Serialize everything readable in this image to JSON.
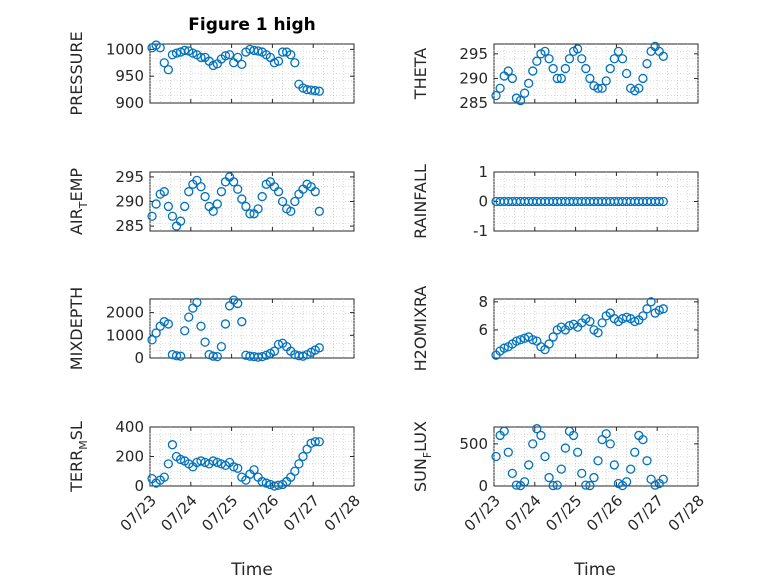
{
  "figure": {
    "title": "Figure 1 high",
    "xlabel": "Time"
  },
  "chart_data": [
    {
      "type": "scatter",
      "id": "pressure",
      "ylabel": "PRESSURE",
      "ylim": [
        900,
        1010
      ],
      "yticks": [
        900,
        950,
        1000
      ],
      "xlim": [
        0,
        5
      ],
      "xticks": [],
      "grid": true,
      "marker_color": "#0072BD",
      "x": [
        0.05,
        0.15,
        0.25,
        0.35,
        0.45,
        0.55,
        0.65,
        0.75,
        0.85,
        0.95,
        1.05,
        1.15,
        1.25,
        1.35,
        1.45,
        1.55,
        1.65,
        1.75,
        1.85,
        1.95,
        2.05,
        2.15,
        2.25,
        2.35,
        2.45,
        2.55,
        2.65,
        2.75,
        2.85,
        2.95,
        3.05,
        3.15,
        3.25,
        3.35,
        3.45,
        3.55,
        3.65,
        3.75,
        3.85,
        3.95,
        4.05,
        4.15
      ],
      "y": [
        1003,
        1008,
        1003,
        975,
        962,
        990,
        993,
        995,
        998,
        997,
        993,
        990,
        985,
        985,
        978,
        970,
        973,
        982,
        988,
        990,
        975,
        985,
        972,
        995,
        1000,
        998,
        997,
        995,
        990,
        985,
        975,
        978,
        995,
        995,
        990,
        975,
        935,
        928,
        925,
        924,
        923,
        922
      ]
    },
    {
      "type": "scatter",
      "id": "theta",
      "ylabel": "THETA",
      "ylim": [
        285,
        297
      ],
      "yticks": [
        285,
        290,
        295
      ],
      "xlim": [
        0,
        5
      ],
      "xticks": [],
      "grid": true,
      "marker_color": "#0072BD",
      "x": [
        0.05,
        0.15,
        0.25,
        0.35,
        0.45,
        0.55,
        0.65,
        0.75,
        0.85,
        0.95,
        1.05,
        1.15,
        1.25,
        1.35,
        1.45,
        1.55,
        1.65,
        1.75,
        1.85,
        1.95,
        2.05,
        2.15,
        2.25,
        2.35,
        2.45,
        2.55,
        2.65,
        2.75,
        2.85,
        2.95,
        3.05,
        3.15,
        3.25,
        3.35,
        3.45,
        3.55,
        3.65,
        3.75,
        3.85,
        3.95,
        4.05,
        4.15
      ],
      "y": [
        286.5,
        288,
        290.5,
        291.5,
        290,
        286,
        285.5,
        287,
        289,
        291.5,
        293.5,
        295,
        295.5,
        294,
        292,
        290,
        290,
        292,
        294,
        295.5,
        296,
        294,
        292,
        290,
        288.5,
        288,
        288,
        289.5,
        292,
        294,
        295.5,
        294,
        291,
        288,
        287.5,
        288,
        290,
        293,
        295.5,
        296.5,
        295.5,
        294.5
      ]
    },
    {
      "type": "scatter",
      "id": "air_temp",
      "ylabel": "AIR_TEMP",
      "ylim": [
        284,
        296
      ],
      "yticks": [
        285,
        290,
        295
      ],
      "xlim": [
        0,
        5
      ],
      "xticks": [],
      "grid": true,
      "marker_color": "#0072BD",
      "x": [
        0.05,
        0.15,
        0.25,
        0.35,
        0.45,
        0.55,
        0.65,
        0.75,
        0.85,
        0.95,
        1.05,
        1.15,
        1.25,
        1.35,
        1.45,
        1.55,
        1.65,
        1.75,
        1.85,
        1.95,
        2.05,
        2.15,
        2.25,
        2.35,
        2.45,
        2.55,
        2.65,
        2.75,
        2.85,
        2.95,
        3.05,
        3.15,
        3.25,
        3.35,
        3.45,
        3.55,
        3.65,
        3.75,
        3.85,
        3.95,
        4.05,
        4.15
      ],
      "y": [
        287,
        289.5,
        291.5,
        292,
        289,
        287,
        285,
        286,
        289,
        292,
        293.5,
        294.3,
        293,
        291,
        289,
        288,
        289.5,
        292,
        294,
        295,
        294,
        292.5,
        290.5,
        289,
        287.5,
        287.5,
        288.5,
        291,
        293.5,
        294,
        293,
        292,
        290,
        288.5,
        288,
        290,
        291.5,
        292.5,
        293.5,
        293,
        292,
        288
      ]
    },
    {
      "type": "scatter",
      "id": "rainfall",
      "ylabel": "RAINFALL",
      "ylim": [
        -1,
        1
      ],
      "yticks": [
        -1,
        0,
        1
      ],
      "xlim": [
        0,
        5
      ],
      "xticks": [],
      "grid": true,
      "marker_color": "#0072BD",
      "x": [
        0.05,
        0.15,
        0.25,
        0.35,
        0.45,
        0.55,
        0.65,
        0.75,
        0.85,
        0.95,
        1.05,
        1.15,
        1.25,
        1.35,
        1.45,
        1.55,
        1.65,
        1.75,
        1.85,
        1.95,
        2.05,
        2.15,
        2.25,
        2.35,
        2.45,
        2.55,
        2.65,
        2.75,
        2.85,
        2.95,
        3.05,
        3.15,
        3.25,
        3.35,
        3.45,
        3.55,
        3.65,
        3.75,
        3.85,
        3.95,
        4.05,
        4.15
      ],
      "y": [
        0,
        0,
        0,
        0,
        0,
        0,
        0,
        0,
        0,
        0,
        0,
        0,
        0,
        0,
        0,
        0,
        0,
        0,
        0,
        0,
        0,
        0,
        0,
        0,
        0,
        0,
        0,
        0,
        0,
        0,
        0,
        0,
        0,
        0,
        0,
        0,
        0,
        0,
        0,
        0,
        0,
        0
      ]
    },
    {
      "type": "scatter",
      "id": "mixdepth",
      "ylabel": "MIXDEPTH",
      "ylim": [
        0,
        2600
      ],
      "yticks": [
        0,
        1000,
        2000
      ],
      "xlim": [
        0,
        5
      ],
      "xticks": [],
      "grid": true,
      "marker_color": "#0072BD",
      "x": [
        0.05,
        0.15,
        0.25,
        0.35,
        0.45,
        0.55,
        0.65,
        0.75,
        0.85,
        0.95,
        1.05,
        1.15,
        1.25,
        1.35,
        1.45,
        1.55,
        1.65,
        1.75,
        1.85,
        1.95,
        2.05,
        2.15,
        2.25,
        2.35,
        2.45,
        2.55,
        2.65,
        2.75,
        2.85,
        2.95,
        3.05,
        3.15,
        3.25,
        3.35,
        3.45,
        3.55,
        3.65,
        3.75,
        3.85,
        3.95,
        4.05,
        4.15
      ],
      "y": [
        800,
        1100,
        1400,
        1600,
        1500,
        150,
        100,
        80,
        1200,
        1800,
        2200,
        2450,
        1400,
        700,
        150,
        80,
        60,
        500,
        1500,
        2300,
        2550,
        2400,
        1600,
        120,
        80,
        60,
        40,
        60,
        120,
        200,
        300,
        600,
        650,
        500,
        300,
        150,
        100,
        80,
        150,
        250,
        350,
        450
      ]
    },
    {
      "type": "scatter",
      "id": "h2omixra",
      "ylabel": "H2OMIXRA",
      "ylim": [
        4,
        8.2
      ],
      "yticks": [
        6,
        8
      ],
      "xlim": [
        0,
        5
      ],
      "xticks": [],
      "grid": true,
      "marker_color": "#0072BD",
      "x": [
        0.05,
        0.15,
        0.25,
        0.35,
        0.45,
        0.55,
        0.65,
        0.75,
        0.85,
        0.95,
        1.05,
        1.15,
        1.25,
        1.35,
        1.45,
        1.55,
        1.65,
        1.75,
        1.85,
        1.95,
        2.05,
        2.15,
        2.25,
        2.35,
        2.45,
        2.55,
        2.65,
        2.75,
        2.85,
        2.95,
        3.05,
        3.15,
        3.25,
        3.35,
        3.45,
        3.55,
        3.65,
        3.75,
        3.85,
        3.95,
        4.05,
        4.15
      ],
      "y": [
        4.2,
        4.5,
        4.7,
        4.8,
        5.0,
        5.2,
        5.3,
        5.4,
        5.5,
        5.3,
        5.2,
        4.8,
        4.6,
        5.0,
        5.5,
        6.0,
        6.2,
        6.0,
        6.3,
        6.4,
        6.2,
        6.5,
        6.8,
        6.6,
        6.0,
        5.8,
        6.5,
        7.0,
        7.2,
        6.8,
        6.6,
        6.8,
        6.9,
        6.8,
        6.6,
        6.7,
        7.0,
        7.5,
        8.0,
        7.2,
        7.4,
        7.5
      ]
    },
    {
      "type": "scatter",
      "id": "terr_msl",
      "ylabel": "TERR_MSL",
      "ylim": [
        0,
        400
      ],
      "yticks": [
        0,
        200,
        400
      ],
      "xlim": [
        0,
        5
      ],
      "xticks": [
        "07/23",
        "07/24",
        "07/25",
        "07/26",
        "07/27",
        "07/28"
      ],
      "grid": true,
      "marker_color": "#0072BD",
      "x": [
        0.05,
        0.15,
        0.25,
        0.35,
        0.45,
        0.55,
        0.65,
        0.75,
        0.85,
        0.95,
        1.05,
        1.15,
        1.25,
        1.35,
        1.45,
        1.55,
        1.65,
        1.75,
        1.85,
        1.95,
        2.05,
        2.15,
        2.25,
        2.35,
        2.45,
        2.55,
        2.65,
        2.75,
        2.85,
        2.95,
        3.05,
        3.15,
        3.25,
        3.35,
        3.45,
        3.55,
        3.65,
        3.75,
        3.85,
        3.95,
        4.05,
        4.15
      ],
      "y": [
        50,
        20,
        40,
        60,
        150,
        280,
        200,
        180,
        170,
        150,
        130,
        160,
        170,
        160,
        150,
        170,
        160,
        150,
        140,
        160,
        130,
        120,
        60,
        40,
        80,
        110,
        60,
        30,
        20,
        10,
        0,
        5,
        10,
        30,
        60,
        100,
        150,
        200,
        250,
        290,
        300,
        300
      ]
    },
    {
      "type": "scatter",
      "id": "sun_flux",
      "ylabel": "SUN_FLUX",
      "ylim": [
        0,
        700
      ],
      "yticks": [
        0,
        500
      ],
      "xlim": [
        0,
        5
      ],
      "xticks": [
        "07/23",
        "07/24",
        "07/25",
        "07/26",
        "07/27",
        "07/28"
      ],
      "grid": true,
      "marker_color": "#0072BD",
      "x": [
        0.05,
        0.15,
        0.25,
        0.35,
        0.45,
        0.55,
        0.65,
        0.75,
        0.85,
        0.95,
        1.05,
        1.15,
        1.25,
        1.35,
        1.45,
        1.55,
        1.65,
        1.75,
        1.85,
        1.95,
        2.05,
        2.15,
        2.25,
        2.35,
        2.45,
        2.55,
        2.65,
        2.75,
        2.85,
        2.95,
        3.05,
        3.15,
        3.25,
        3.35,
        3.45,
        3.55,
        3.65,
        3.75,
        3.85,
        3.95,
        4.05,
        4.15
      ],
      "y": [
        350,
        600,
        650,
        400,
        150,
        10,
        5,
        50,
        250,
        500,
        680,
        600,
        350,
        100,
        5,
        10,
        200,
        450,
        650,
        600,
        400,
        150,
        10,
        5,
        100,
        300,
        550,
        620,
        500,
        250,
        30,
        5,
        50,
        200,
        400,
        600,
        550,
        300,
        80,
        10,
        30,
        80
      ]
    }
  ]
}
